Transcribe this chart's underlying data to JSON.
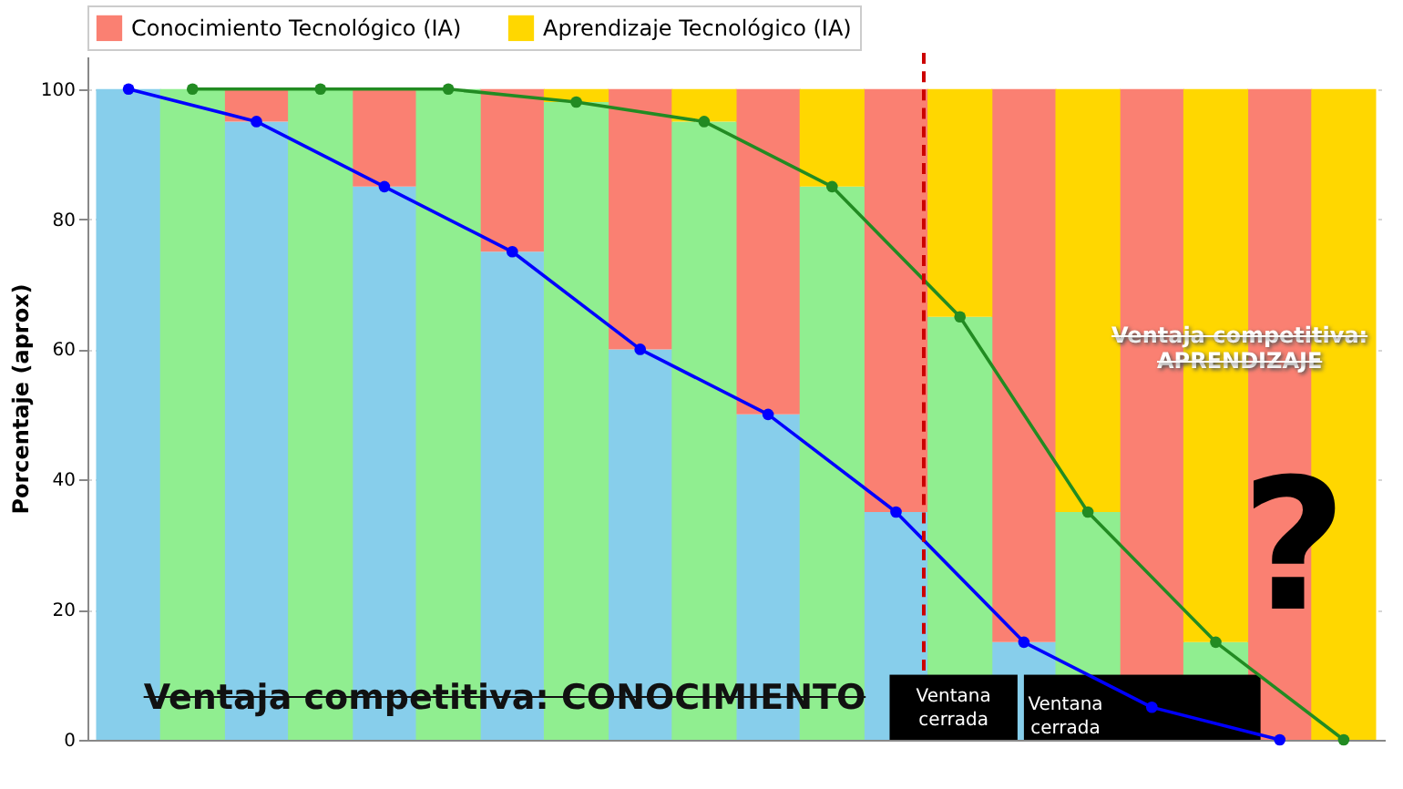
{
  "chart_data": {
    "type": "bar",
    "stacked": true,
    "ylabel": "Porcentaje (aprox)",
    "categories": [
      null,
      null,
      null,
      null,
      null,
      null,
      null,
      null,
      null,
      null,
      null,
      null,
      null,
      null,
      null,
      null,
      null,
      null,
      null,
      null
    ],
    "ylim": [
      0,
      105
    ],
    "yticks": [
      0,
      20,
      40,
      60,
      80,
      100
    ],
    "grid": "y",
    "legend": "top",
    "series": [
      {
        "color": "#87ceeb",
        "values": [
          100,
          null,
          95,
          null,
          85,
          null,
          75,
          null,
          60,
          null,
          50,
          null,
          35,
          null,
          15,
          null,
          0,
          null,
          0,
          null
        ]
      },
      {
        "name": "Conocimiento Tecnológico (IA)",
        "color": "#fa8072",
        "values": [
          0,
          null,
          5,
          null,
          15,
          null,
          25,
          null,
          40,
          null,
          50,
          null,
          65,
          null,
          85,
          null,
          100,
          null,
          100,
          null
        ]
      },
      {
        "color": "#90ee90",
        "values": [
          null,
          100,
          null,
          100,
          null,
          100,
          null,
          98,
          null,
          95,
          null,
          85,
          null,
          65,
          null,
          35,
          null,
          15,
          null,
          0
        ]
      },
      {
        "name": "Aprendizaje Tecnológico (IA)",
        "color": "#ffd700",
        "values": [
          null,
          0,
          null,
          0,
          null,
          0,
          null,
          2,
          null,
          5,
          null,
          15,
          null,
          35,
          null,
          65,
          null,
          85,
          null,
          100
        ]
      },
      {
        "type": "line",
        "color": "#0000ff",
        "marker": "circle",
        "values": [
          100,
          null,
          95,
          null,
          85,
          null,
          75,
          null,
          60,
          null,
          50,
          null,
          35,
          null,
          15,
          null,
          5,
          null,
          0,
          null
        ]
      },
      {
        "type": "line",
        "color": "#228b22",
        "marker": "circle",
        "values": [
          null,
          100,
          null,
          100,
          null,
          100,
          null,
          98,
          null,
          95,
          null,
          85,
          null,
          65,
          null,
          35,
          null,
          15,
          null,
          0
        ]
      }
    ],
    "annotations": [
      "Ventaja competitiva: CONOCIMIENTO",
      "Ventaja competitiva: APRENDIZAJE",
      "Ventana cerrada",
      "Ventana cerrada",
      "?"
    ]
  }
}
